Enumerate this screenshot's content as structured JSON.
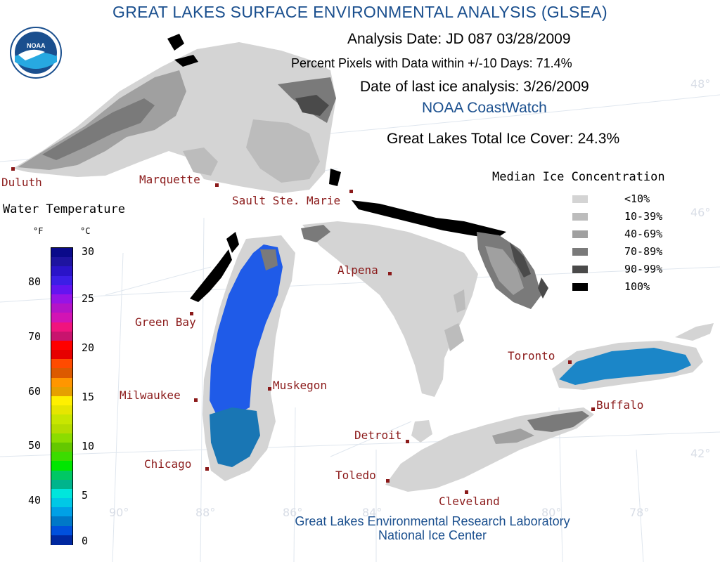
{
  "title": "GREAT LAKES SURFACE ENVIRONMENTAL ANALYSIS (GLSEA)",
  "header": {
    "analysis_date": "Analysis Date:  JD 087 03/28/2009",
    "percent_pixels": "Percent Pixels with Data within +/-10 Days:  71.4%",
    "last_ice": "Date of last ice analysis: 3/26/2009",
    "source": "NOAA CoastWatch",
    "total_ice": "Great Lakes Total Ice Cover:  24.3%"
  },
  "logo": {
    "text": "NOAA"
  },
  "colors": {
    "ice_lt10": "#d4d4d4",
    "ice_10_39": "#bcbcbc",
    "ice_40_69": "#a0a0a0",
    "ice_70_89": "#7a7a7a",
    "ice_90_99": "#4a4a4a",
    "ice_100": "#000000",
    "lake_michigan_water": "#1f5be8",
    "lake_ontario_water": "#1b86c8",
    "lake_michigan_south": "#1976b4",
    "accent_blue": "#1a4f8e",
    "city_red": "#8b1a1a"
  },
  "ice_legend": {
    "title": "Median Ice Concentration",
    "items": [
      {
        "label": "<10%",
        "color": "#d4d4d4"
      },
      {
        "label": "10-39%",
        "color": "#bcbcbc"
      },
      {
        "label": "40-69%",
        "color": "#a0a0a0"
      },
      {
        "label": "70-89%",
        "color": "#7a7a7a"
      },
      {
        "label": "90-99%",
        "color": "#4a4a4a"
      },
      {
        "label": "100%",
        "color": "#000000"
      }
    ]
  },
  "water_temp": {
    "title": "Water Temperature",
    "unit_f": "°F",
    "unit_c": "°C",
    "f_ticks": [
      "80",
      "70",
      "60",
      "50",
      "40"
    ],
    "c_ticks": [
      "30",
      "25",
      "20",
      "15",
      "10",
      "5",
      "0"
    ],
    "colors": [
      "#0a0a8a",
      "#1e14a0",
      "#2a14c8",
      "#3c1ee6",
      "#6414f0",
      "#9614e6",
      "#b414c8",
      "#d214b4",
      "#f0147d",
      "#c8146e",
      "#ff0000",
      "#e60000",
      "#ff4b00",
      "#dc5a00",
      "#ff9600",
      "#e6a000",
      "#fff000",
      "#e6e600",
      "#c8e600",
      "#b4dc00",
      "#8cdc00",
      "#64c800",
      "#3cdc00",
      "#00e600",
      "#00c864",
      "#00b48c",
      "#00e6dc",
      "#00c8e6",
      "#00a0e6",
      "#0078c8",
      "#0050dc",
      "#0028a0"
    ]
  },
  "cities": [
    {
      "name": "Duluth"
    },
    {
      "name": "Marquette"
    },
    {
      "name": "Sault Ste. Marie"
    },
    {
      "name": "Alpena"
    },
    {
      "name": "Green Bay"
    },
    {
      "name": "Milwaukee"
    },
    {
      "name": "Muskegon"
    },
    {
      "name": "Chicago"
    },
    {
      "name": "Detroit"
    },
    {
      "name": "Toledo"
    },
    {
      "name": "Cleveland"
    },
    {
      "name": "Toronto"
    },
    {
      "name": "Buffalo"
    }
  ],
  "grid_labels": [
    "48°",
    "46°",
    "42°",
    "90°",
    "88°",
    "86°",
    "84°",
    "80°",
    "78°"
  ],
  "credits": {
    "line1": "Great Lakes Environmental Research Laboratory",
    "line2": "National Ice Center"
  }
}
